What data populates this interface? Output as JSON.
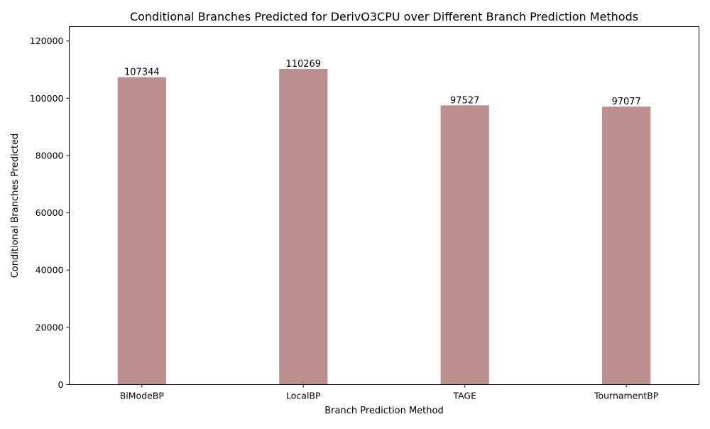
{
  "chart_data": {
    "type": "bar",
    "title": "Conditional Branches Predicted for DerivO3CPU over Different Branch Prediction Methods",
    "xlabel": "Branch Prediction Method",
    "ylabel": "Conditional Branches Predicted",
    "categories": [
      "BiModeBP",
      "LocalBP",
      "TAGE",
      "TournamentBP"
    ],
    "values": [
      107344,
      110269,
      97527,
      97077
    ],
    "data_labels": [
      "107344",
      "110269",
      "97527",
      "97077"
    ],
    "ylim": [
      0,
      125000
    ],
    "yticks": [
      0,
      20000,
      40000,
      60000,
      80000,
      100000,
      120000
    ],
    "ytick_labels": [
      "0",
      "20000",
      "40000",
      "60000",
      "80000",
      "100000",
      "120000"
    ],
    "bar_color": "#bc8f8f",
    "grid": false,
    "legend": "none"
  }
}
